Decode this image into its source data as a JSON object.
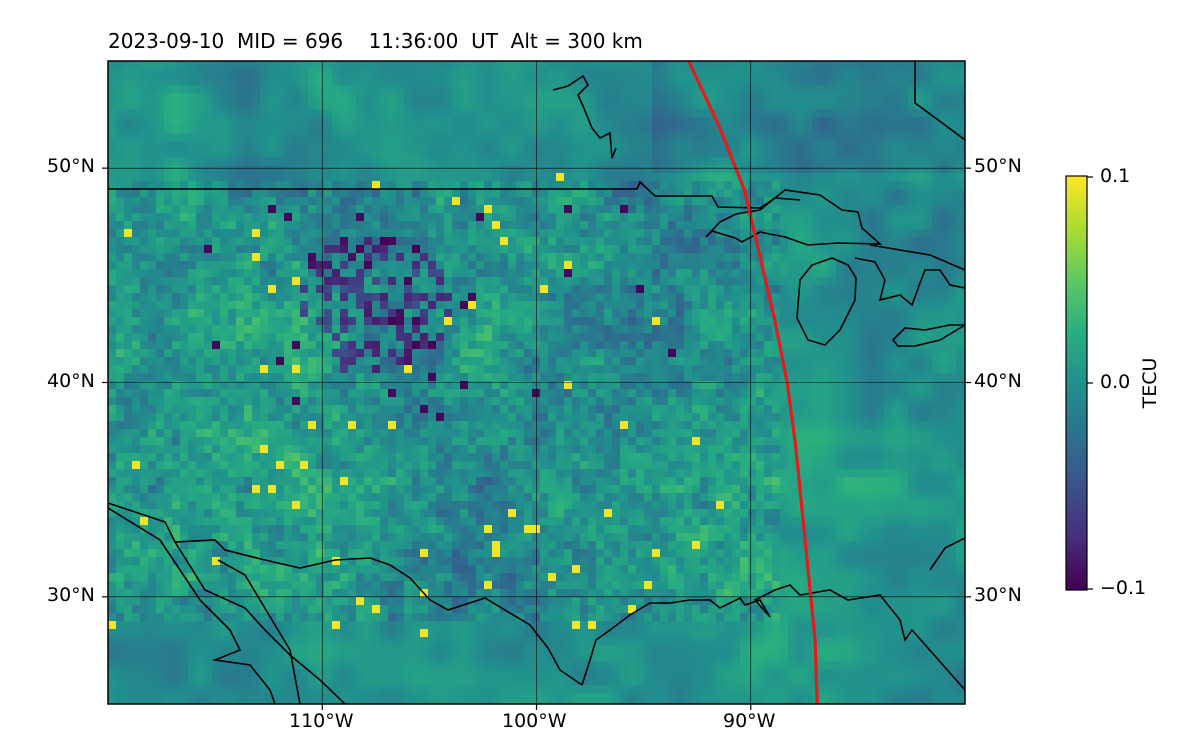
{
  "title": "2023-09-10  MID = 696    11:36:00  UT  Alt = 300 km",
  "map": {
    "extent": {
      "lon": [
        -120,
        -80
      ],
      "lat": [
        25,
        55
      ]
    },
    "lat_ticks": [
      30,
      40,
      50
    ],
    "lat_labels": [
      "30°N",
      "40°N",
      "50°N"
    ],
    "lon_ticks": [
      -110,
      -100,
      -90
    ],
    "lon_labels": [
      "110°W",
      "100°W",
      "90°W"
    ],
    "terminator_color": "#e41a1c",
    "terminator": [
      [
        -92.9,
        55
      ],
      [
        -91.5,
        52
      ],
      [
        -90.3,
        49
      ],
      [
        -89.6,
        46
      ],
      [
        -88.9,
        43
      ],
      [
        -88.3,
        40
      ],
      [
        -87.9,
        37
      ],
      [
        -87.6,
        34
      ],
      [
        -87.3,
        31
      ],
      [
        -87.0,
        28
      ],
      [
        -86.9,
        25
      ]
    ]
  },
  "colorbar": {
    "label": "TECU",
    "ticks": [
      "0.1",
      "0.0",
      "−0.1"
    ],
    "vmin": -0.1,
    "vmax": 0.1,
    "colormap": "viridis"
  }
}
